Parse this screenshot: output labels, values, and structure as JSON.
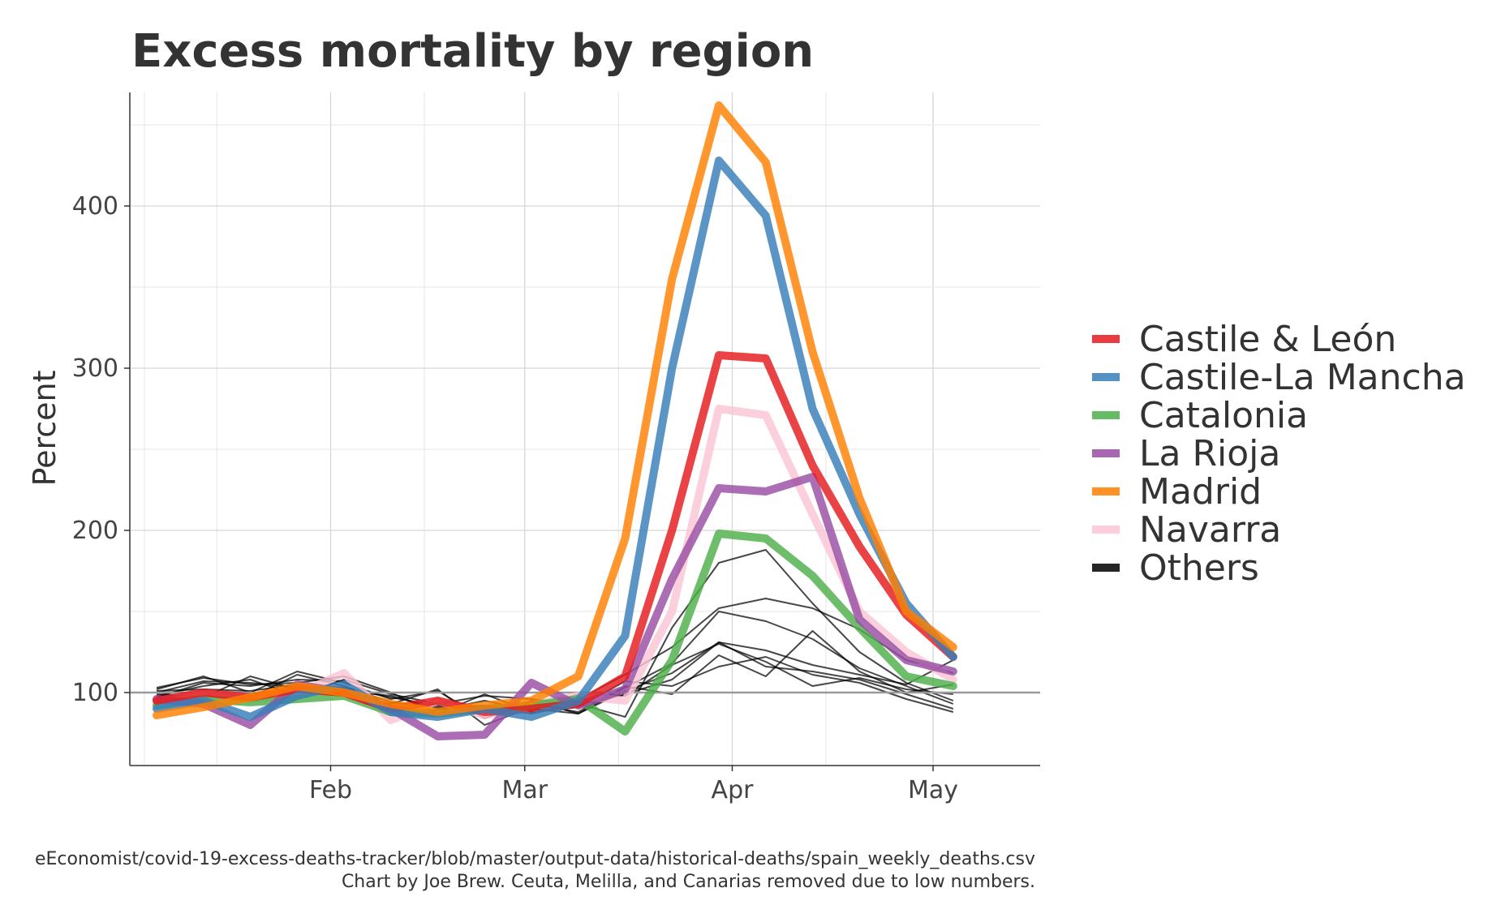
{
  "chart_data": {
    "type": "line",
    "title": "Excess mortality by region",
    "xlabel": "",
    "ylabel": "Percent",
    "x_ticks": [
      "Feb",
      "Mar",
      "Apr",
      "May"
    ],
    "y_ticks": [
      100,
      200,
      300,
      400
    ],
    "ylim": [
      55,
      470
    ],
    "reference_line": 100,
    "grid": true,
    "legend_position": "right",
    "x": [
      "2020-01-06",
      "2020-01-13",
      "2020-01-20",
      "2020-01-27",
      "2020-02-03",
      "2020-02-10",
      "2020-02-17",
      "2020-02-24",
      "2020-03-02",
      "2020-03-09",
      "2020-03-16",
      "2020-03-23",
      "2020-03-30",
      "2020-04-06",
      "2020-04-13",
      "2020-04-20",
      "2020-04-27",
      "2020-05-04"
    ],
    "series": [
      {
        "name": "Castile & León",
        "color": "#e41a1c",
        "values": [
          95,
          100,
          97,
          102,
          100,
          90,
          95,
          88,
          90,
          93,
          110,
          200,
          308,
          306,
          240,
          190,
          148,
          122
        ]
      },
      {
        "name": "Castile-La Mancha",
        "color": "#377eb8",
        "values": [
          90,
          95,
          85,
          98,
          105,
          88,
          85,
          90,
          85,
          95,
          135,
          300,
          428,
          394,
          275,
          210,
          155,
          122
        ]
      },
      {
        "name": "Catalonia",
        "color": "#4daf4a",
        "values": [
          92,
          96,
          94,
          96,
          98,
          88,
          87,
          90,
          92,
          96,
          76,
          120,
          198,
          195,
          172,
          140,
          110,
          104
        ]
      },
      {
        "name": "La Rioja",
        "color": "#984ea3",
        "values": [
          96,
          93,
          80,
          105,
          100,
          90,
          73,
          74,
          106,
          92,
          102,
          170,
          226,
          224,
          233,
          145,
          120,
          113
        ]
      },
      {
        "name": "Madrid",
        "color": "#ff7f00",
        "values": [
          86,
          91,
          97,
          104,
          100,
          93,
          88,
          92,
          95,
          110,
          195,
          355,
          462,
          427,
          310,
          220,
          150,
          128
        ]
      },
      {
        "name": "Navarra",
        "color": "#fbc4d4",
        "values": [
          94,
          99,
          96,
          99,
          112,
          83,
          95,
          86,
          92,
          98,
          95,
          150,
          275,
          271,
          210,
          150,
          125,
          108
        ]
      },
      {
        "name": "Others",
        "color": "#000000",
        "values": [
          100,
          108,
          103,
          104,
          98,
          95,
          94,
          86,
          90,
          89,
          100,
          120,
          190,
          200,
          190,
          140,
          120,
          110
        ]
      }
    ],
    "others_lines": [
      [
        102,
        110,
        100,
        113,
        106,
        96,
        101,
        84,
        95,
        87,
        103,
        118,
        150,
        144,
        133,
        115,
        104,
        93
      ],
      [
        98,
        104,
        108,
        98,
        108,
        99,
        93,
        98,
        96,
        92,
        99,
        108,
        131,
        116,
        113,
        108,
        99,
        90
      ],
      [
        96,
        101,
        97,
        111,
        104,
        94,
        91,
        92,
        87,
        93,
        85,
        140,
        180,
        188,
        155,
        125,
        106,
        95
      ],
      [
        103,
        109,
        105,
        106,
        110,
        100,
        87,
        99,
        88,
        91,
        107,
        104,
        116,
        122,
        111,
        106,
        96,
        88
      ],
      [
        99,
        97,
        110,
        102,
        99,
        93,
        102,
        80,
        91,
        96,
        111,
        128,
        152,
        158,
        152,
        139,
        120,
        112
      ],
      [
        97,
        106,
        104,
        108,
        107,
        91,
        89,
        95,
        89,
        99,
        98,
        117,
        130,
        119,
        104,
        109,
        102,
        99
      ],
      [
        101,
        102,
        101,
        105,
        103,
        97,
        92,
        90,
        93,
        88,
        104,
        99,
        123,
        110,
        138,
        113,
        100,
        105
      ],
      [
        100,
        107,
        106,
        103,
        101,
        98,
        90,
        92,
        90,
        87,
        101,
        112,
        131,
        126,
        117,
        111,
        105,
        120
      ]
    ],
    "caption_lines": [
      "eEconomist/covid-19-excess-deaths-tracker/blob/master/output-data/historical-deaths/spain_weekly_deaths.csv",
      "Chart by Joe Brew. Ceuta, Melilla, and Canarias removed due to low numbers."
    ]
  }
}
